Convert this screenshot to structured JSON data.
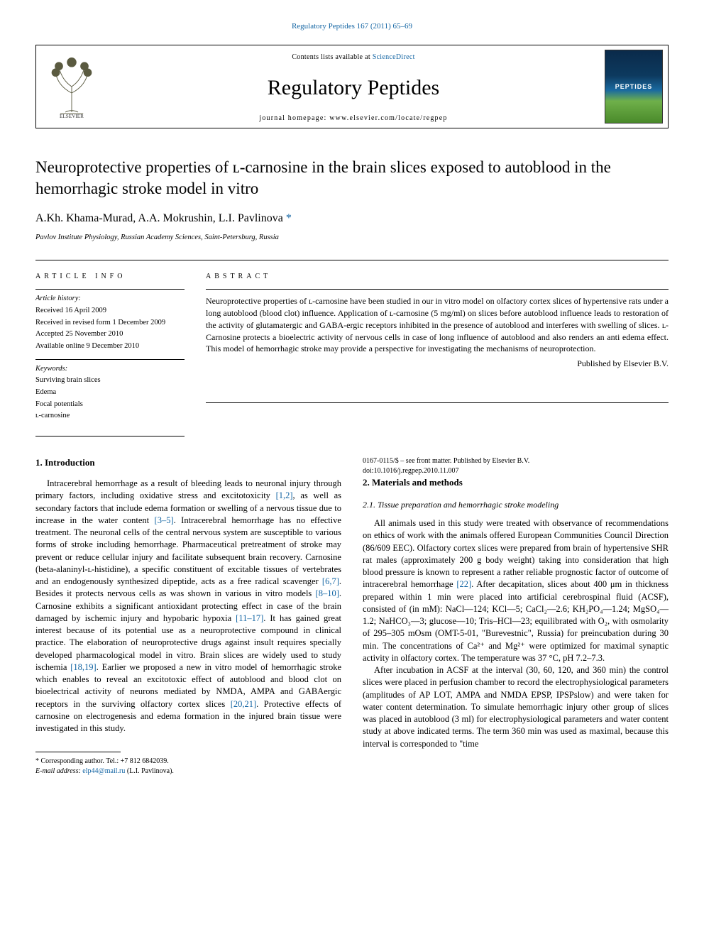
{
  "topLink": {
    "journal": "Regulatory Peptides",
    "citation": "167 (2011) 65–69"
  },
  "headerBox": {
    "contentsPrefix": "Contents lists available at ",
    "contentsLinkText": "ScienceDirect",
    "journalName": "Regulatory Peptides",
    "homepageLabel": "journal homepage: ",
    "homepageUrl": "www.elsevier.com/locate/regpep",
    "coverText": "PEPTIDES",
    "publisherLogoAlt": "Elsevier tree logo"
  },
  "article": {
    "title": "Neuroprotective properties of ʟ-carnosine in the brain slices exposed to autoblood in the hemorrhagic stroke model in vitro",
    "authors": "A.Kh. Khama-Murad, A.A. Mokrushin, L.I. Pavlinova",
    "correspondingMark": "*",
    "affiliation": "Pavlov Institute Physiology, Russian Academy Sciences, Saint-Petersburg, Russia"
  },
  "info": {
    "heading": "article info",
    "historyHead": "Article history:",
    "history": [
      "Received 16 April 2009",
      "Received in revised form 1 December 2009",
      "Accepted 25 November 2010",
      "Available online 9 December 2010"
    ],
    "keywordsHead": "Keywords:",
    "keywords": [
      "Surviving brain slices",
      "Edema",
      "Focal potentials",
      "ʟ-carnosine"
    ]
  },
  "abstract": {
    "heading": "abstract",
    "text": "Neuroprotective properties of ʟ-carnosine have been studied in our in vitro model on olfactory cortex slices of hypertensive rats under a long autoblood (blood clot) influence. Application of ʟ-carnosine (5 mg/ml) on slices before autoblood influence leads to restoration of the activity of glutamatergic and GABA-ergic receptors inhibited in the presence of autoblood and interferes with swelling of slices. ʟ-Carnosine protects a bioelectric activity of nervous cells in case of long influence of autoblood and also renders an anti edema effect. This model of hemorrhagic stroke may provide a perspective for investigating the mechanisms of neuroprotection.",
    "publishedBy": "Published by Elsevier B.V."
  },
  "sections": {
    "introHead": "1. Introduction",
    "introText": "Intracerebral hemorrhage as a result of bleeding leads to neuronal injury through primary factors, including oxidative stress and excitotoxicity [1,2], as well as secondary factors that include edema formation or swelling of a nervous tissue due to increase in the water content [3–5]. Intracerebral hemorrhage has no effective treatment. The neuronal cells of the central nervous system are susceptible to various forms of stroke including hemorrhage. Pharmaceutical pretreatment of stroke may prevent or reduce cellular injury and facilitate subsequent brain recovery. Carnosine (beta-alaninyl-ʟ-histidine), a specific constituent of excitable tissues of vertebrates and an endogenously synthesized dipeptide, acts as a free radical scavenger [6,7]. Besides it protects nervous cells as was shown in various in vitro models [8–10]. Carnosine exhibits a significant antioxidant protecting effect in case of the brain damaged by ischemic injury and hypobaric hypoxia [11–17]. It has gained great interest because of its potential use as a neuroprotective compound in clinical practice. The elaboration of neuroprotective drugs against insult requires specially developed pharmacological model in vitro. Brain slices are widely used to study ischemia [18,19]. Earlier we proposed a new in vitro model of hemorrhagic stroke which enables to reveal an excitotoxic effect of autoblood and blood clot on bioelectrical activity of neurons mediated by NMDA, AMPA and GABAergic receptors in the surviving olfactory cortex slices [20,21]. Protective effects of carnosine on electrogenesis and edema formation in the injured brain tissue were investigated in this study.",
    "methodsHead": "2. Materials and methods",
    "tissueHead": "2.1. Tissue preparation and hemorrhagic stroke modeling",
    "methodsP1": "All animals used in this study were treated with observance of recommendations on ethics of work with the animals offered European Communities Council Direction (86/609 EEC). Olfactory cortex slices were prepared from brain of hypertensive SHR rat males (approximately 200 g body weight) taking into consideration that high blood pressure is known to represent a rather reliable prognostic factor of outcome of intracerebral hemorrhage [22]. After decapitation, slices about 400 μm in thickness prepared within 1 min were placed into artificial cerebrospinal fluid (ACSF), consisted of (in mM): NaCl—124; KCl—5; CaCl₂—2.6; KH₂PO₄—1.24; MgSO₄—1.2; NaHCO₃—3; glucose—10; Tris–HCl—23; equilibrated with O₂, with osmolarity of 295–305 mOsm (OMT-5-01, \"Burevestnic\", Russia) for preincubation during 30 min. The concentrations of Ca²⁺ and Mg²⁺ were optimized for maximal synaptic activity in olfactory cortex. The temperature was 37 °C, pH 7.2–7.3.",
    "methodsP2": "After incubation in ACSF at the interval (30, 60, 120, and 360 min) the control slices were placed in perfusion chamber to record the electrophysiological parameters (amplitudes of AP LOT, AMPA and NMDA EPSP, IPSPslow) and were taken for water content determination. To simulate hemorrhagic injury other group of slices was placed in autoblood (3 ml) for electrophysiological parameters and water content study at above indicated terms. The term 360 min was used as maximal, because this interval is corresponded to \"time"
  },
  "footnote": {
    "correspondingLabel": "* Corresponding author. Tel.: ",
    "tel": "+7 812 6842039.",
    "emailLabel": "E-mail address: ",
    "email": "elp44@mail.ru",
    "emailSuffix": " (L.I. Pavlinova)."
  },
  "bottom": {
    "issn": "0167-0115/$ – see front matter. Published by Elsevier B.V.",
    "doi": "doi:10.1016/j.regpep.2010.11.007"
  },
  "refs": {
    "r1": "[1,2]",
    "r2": "[3–5]",
    "r3": "[6,7]",
    "r4": "[8–10]",
    "r5": "[11–17]",
    "r6": "[18,19]",
    "r7": "[20,21]",
    "r8": "[22]"
  },
  "style": {
    "linkColor": "#1264a3",
    "bodyFontSize": 12.5,
    "titleFontSize": 23,
    "journalNameFontSize": 30,
    "pageWidth": 992,
    "pageHeight": 1323
  }
}
